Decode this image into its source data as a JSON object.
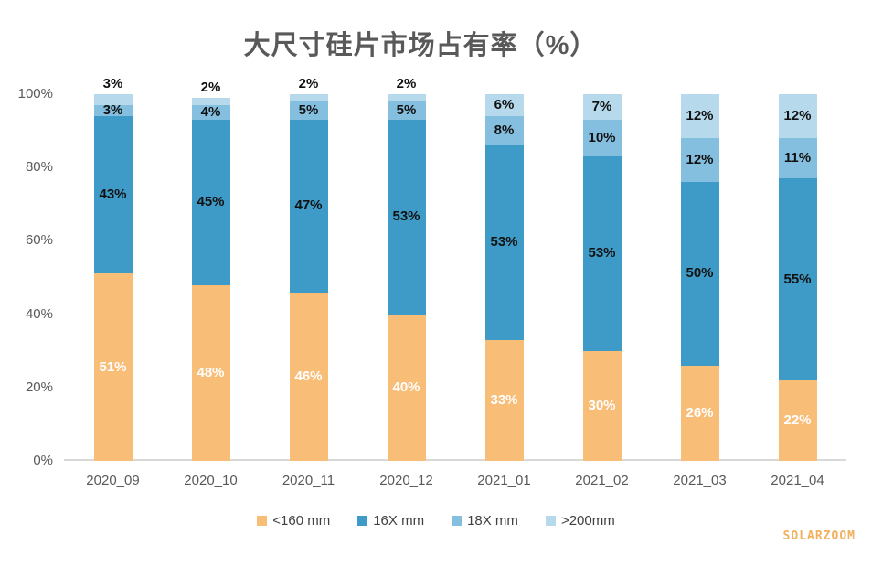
{
  "watermark": "SOLARZOOM",
  "chart_data": {
    "type": "bar",
    "stacked": true,
    "title": "大尺寸硅片市场占有率（%）",
    "categories": [
      "2020_09",
      "2020_10",
      "2020_11",
      "2020_12",
      "2021_01",
      "2021_02",
      "2021_03",
      "2021_04"
    ],
    "series": [
      {
        "name": "<160 mm",
        "color": "#F8BD77",
        "label_color": "#FFFFFF",
        "values": [
          51,
          48,
          46,
          40,
          33,
          30,
          26,
          22
        ]
      },
      {
        "name": "16X mm",
        "color": "#3E9BC8",
        "label_color": "#111111",
        "values": [
          43,
          45,
          47,
          53,
          53,
          53,
          50,
          55
        ]
      },
      {
        "name": "18X mm",
        "color": "#85BFDF",
        "label_color": "#111111",
        "values": [
          3,
          4,
          5,
          5,
          8,
          10,
          12,
          11
        ]
      },
      {
        "name": ">200mm",
        "color": "#B6D9EC",
        "label_color": "#111111",
        "values": [
          3,
          2,
          2,
          2,
          6,
          7,
          12,
          12
        ]
      }
    ],
    "xlabel": "",
    "ylabel": "",
    "ylim": [
      0,
      100
    ],
    "yticks": [
      "0%",
      "20%",
      "40%",
      "60%",
      "80%",
      "100%"
    ],
    "grid": false,
    "legend_position": "bottom",
    "axis_line_color": "#D9D9D9",
    "tick_label_color": "#595959",
    "outside_label_threshold": 5
  }
}
